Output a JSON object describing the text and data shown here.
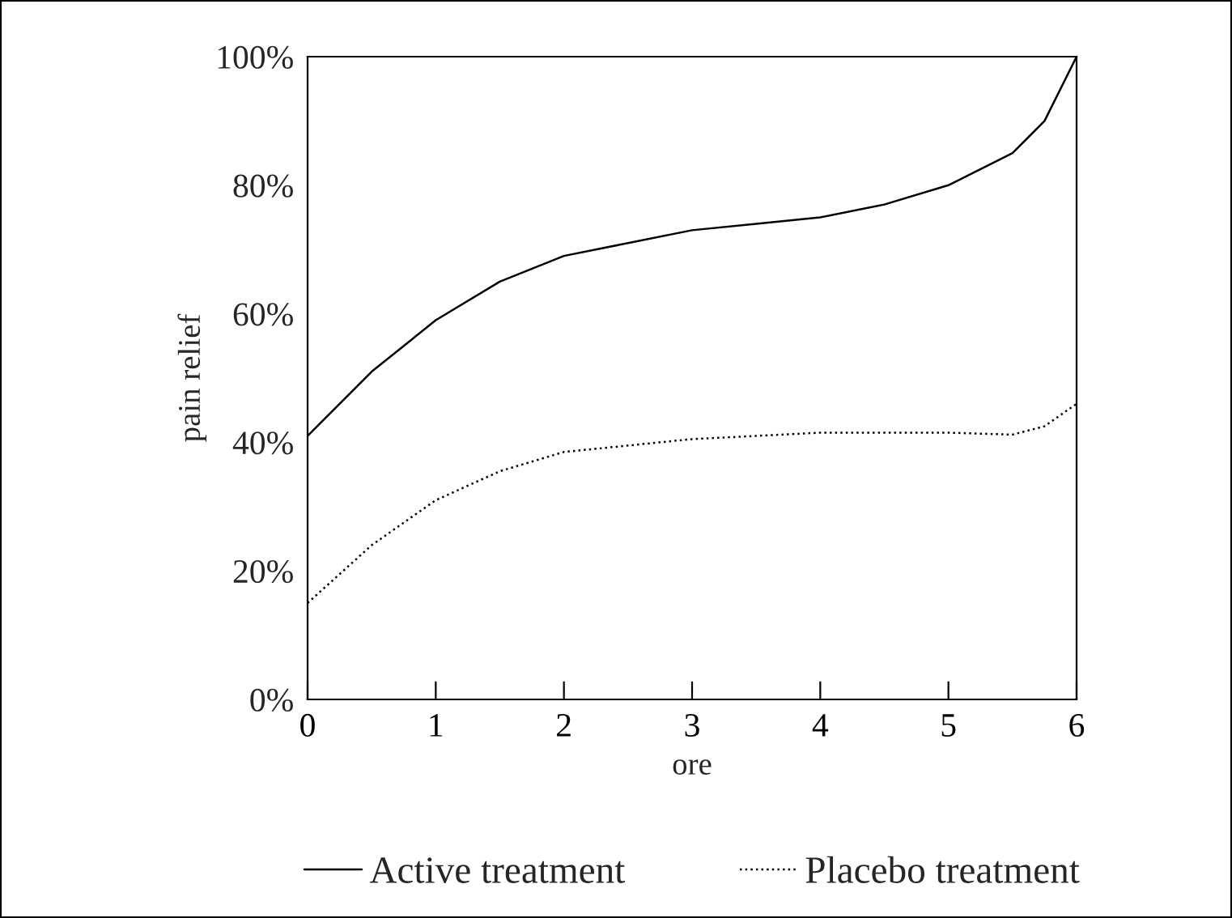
{
  "chart_data": {
    "type": "line",
    "xlabel": "ore",
    "ylabel": "pain relief",
    "x": [
      0,
      0.5,
      1,
      1.5,
      2,
      2.5,
      3,
      3.5,
      4,
      4.5,
      5,
      5.5,
      5.75,
      6
    ],
    "series": [
      {
        "name": "Active treatment",
        "color": "#000000",
        "line_style": "solid",
        "values": [
          41,
          51,
          59,
          65,
          69,
          71,
          73,
          74,
          75,
          77,
          80,
          85,
          90,
          100
        ]
      },
      {
        "name": "Placebo treatment",
        "color": "#000000",
        "line_style": "dotted",
        "values": [
          15,
          24,
          31,
          35.5,
          38.5,
          39.5,
          40.5,
          41,
          41.5,
          41.5,
          41.5,
          41.2,
          42.5,
          46
        ]
      }
    ],
    "xlim": [
      0,
      6
    ],
    "xticks": [
      0,
      1,
      2,
      3,
      4,
      5,
      6
    ],
    "ylim": [
      0,
      100
    ],
    "yticks": [
      {
        "value": 0,
        "label": "0%"
      },
      {
        "value": 20,
        "label": "20%"
      },
      {
        "value": 40,
        "label": "40%"
      },
      {
        "value": 60,
        "label": "60%"
      },
      {
        "value": 80,
        "label": "80%"
      },
      {
        "value": 100,
        "label": "100%"
      }
    ],
    "grid": false,
    "legend": "bottom",
    "marker": "none"
  }
}
